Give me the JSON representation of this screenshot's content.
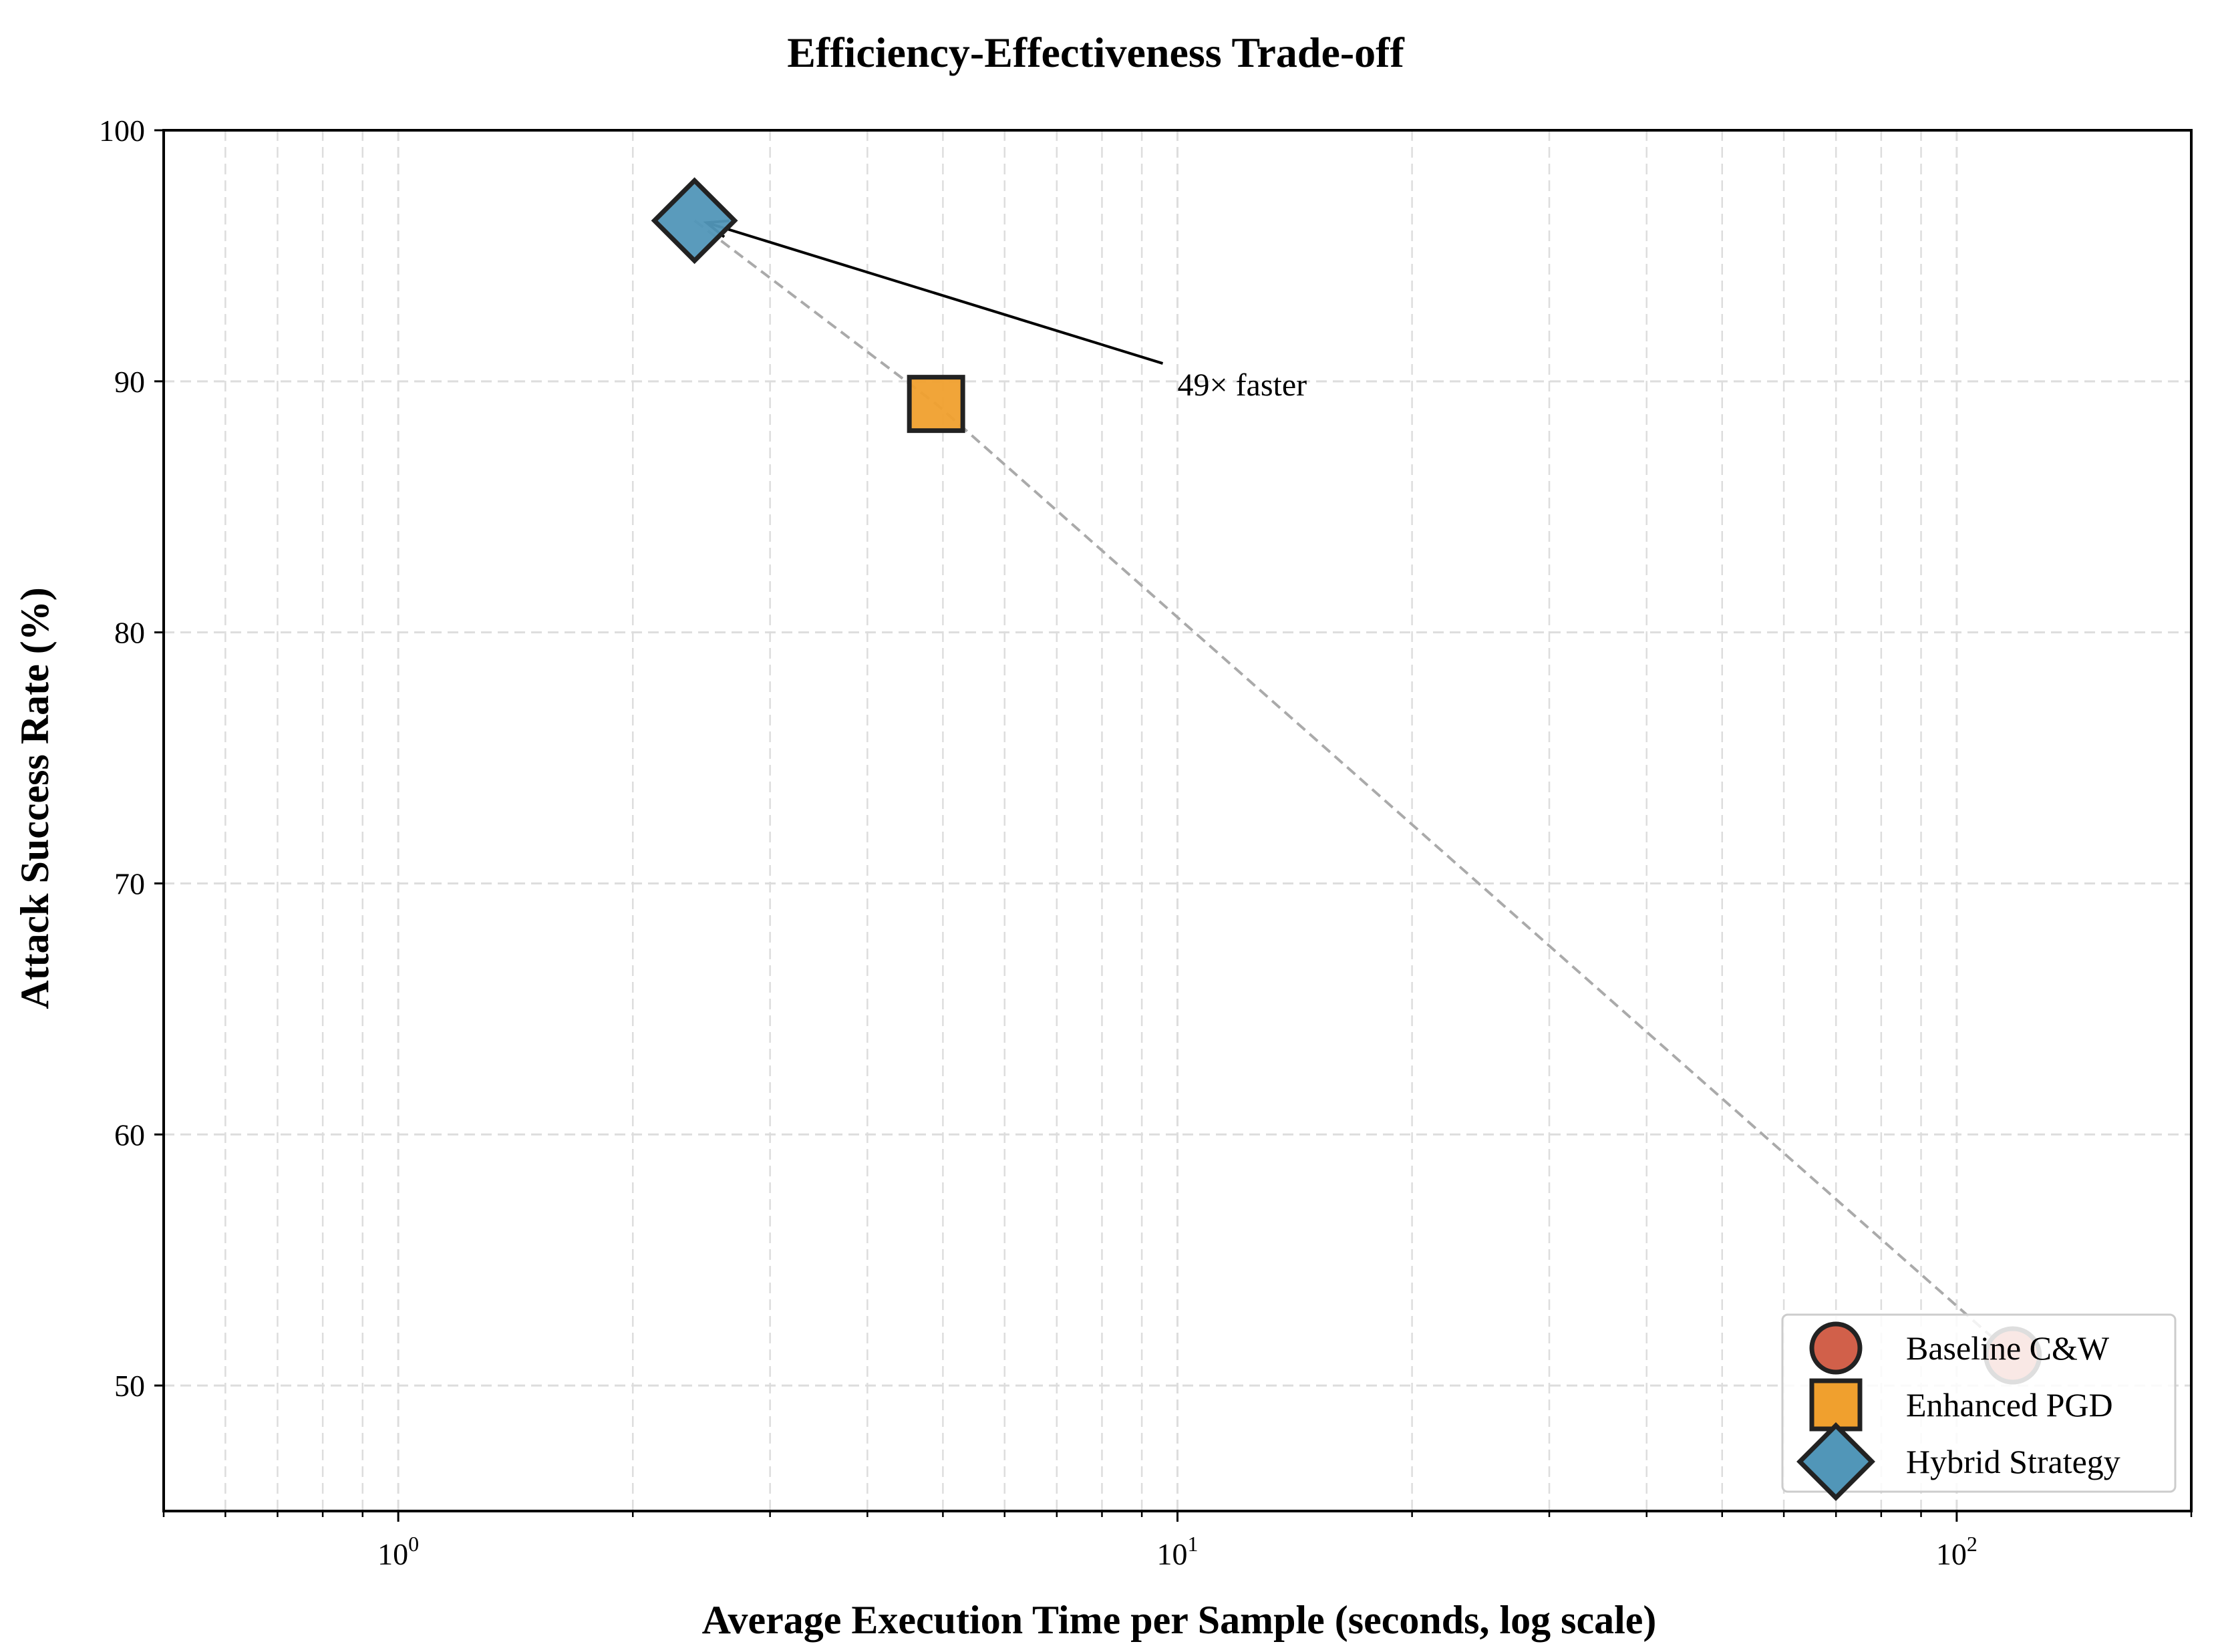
{
  "chart_data": {
    "type": "scatter",
    "title": "Efficiency-Effectiveness Trade-off",
    "xlabel": "Average Execution Time per Sample (seconds, log scale)",
    "ylabel": "Attack Success Rate (%)",
    "xscale": "log",
    "xlim": [
      0.5,
      200
    ],
    "ylim": [
      45,
      100
    ],
    "xticks": [
      {
        "value": 1,
        "base": "10",
        "exp": "0"
      },
      {
        "value": 10,
        "base": "10",
        "exp": "1"
      },
      {
        "value": 100,
        "base": "10",
        "exp": "2"
      }
    ],
    "yticks": [
      50,
      60,
      70,
      80,
      90,
      100
    ],
    "grid": true,
    "legend_position": "lower-right",
    "series": [
      {
        "name": "Baseline C&W",
        "marker": "circle",
        "color": "#d1604a",
        "x": 118,
        "y": 51.2
      },
      {
        "name": "Enhanced PGD",
        "marker": "square",
        "color": "#f0a02e",
        "x": 4.9,
        "y": 89.1
      },
      {
        "name": "Hybrid Strategy",
        "marker": "diamond",
        "color": "#5196b8",
        "x": 2.4,
        "y": 96.4
      }
    ],
    "trend_line": {
      "style": "dashed",
      "color": "#aaaaaa",
      "points": [
        [
          2.4,
          96.4
        ],
        [
          4.9,
          89.1
        ],
        [
          118,
          51.2
        ]
      ]
    },
    "annotation": {
      "text": "49× faster",
      "text_x": 10,
      "text_y": 90.5,
      "arrow_to_x": 2.4,
      "arrow_to_y": 96.4
    }
  }
}
